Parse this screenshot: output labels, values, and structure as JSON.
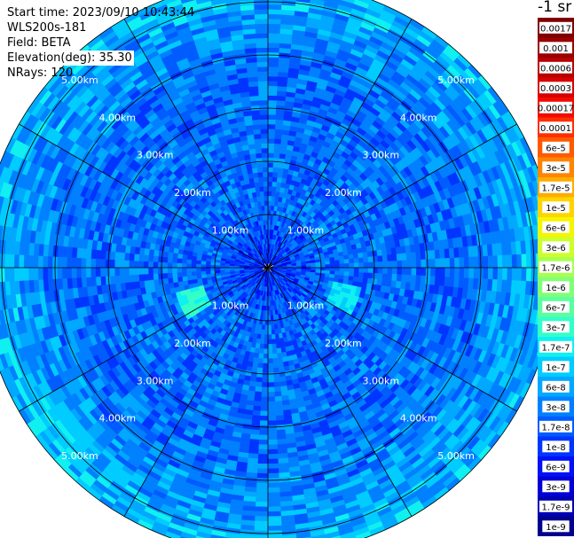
{
  "header": {
    "start_time": "Start time: 2023/09/10 10:43:44",
    "instrument": "WLS200s-181",
    "field": "Field: BETA",
    "elevation": "Elevation(deg): 35.30",
    "nrays": "NRays: 120"
  },
  "colorbar": {
    "title": "-1 sr",
    "labels": [
      "0.0017",
      "0.001",
      "0.0006",
      "0.0003",
      "0.00017",
      "0.0001",
      "6e-5",
      "3e-5",
      "1.7e-5",
      "1e-5",
      "6e-6",
      "3e-6",
      "1.7e-6",
      "1e-6",
      "6e-7",
      "3e-7",
      "1.7e-7",
      "1e-7",
      "6e-8",
      "3e-8",
      "1.7e-8",
      "1e-8",
      "6e-9",
      "3e-9",
      "1.7e-9",
      "1e-9"
    ],
    "colors": [
      "#7f0000",
      "#9a0000",
      "#b80000",
      "#d80000",
      "#f40a00",
      "#ff2e00",
      "#ff5a00",
      "#ff8400",
      "#ffac00",
      "#ffd400",
      "#f4f600",
      "#ccff2c",
      "#a8ff50",
      "#82ff76",
      "#5affa0",
      "#34ffc8",
      "#10f0f0",
      "#00ccff",
      "#00a8ff",
      "#0080ff",
      "#005cff",
      "#0034ff",
      "#0010f8",
      "#0000d6",
      "#0000b4",
      "#00008e"
    ]
  },
  "chart_data": {
    "type": "heatmap",
    "projection": "polar (plan position indicator)",
    "rays": 120,
    "range_rings_km": [
      1.0,
      2.0,
      3.0,
      4.0,
      5.0
    ],
    "range_ring_label": "km",
    "radial_spokes_deg": [
      0,
      30,
      60,
      90,
      120,
      150,
      180,
      210,
      240,
      270,
      300,
      330
    ],
    "max_range_km": 5.4,
    "color_scale": "log",
    "value_range": [
      1e-09,
      0.0017
    ],
    "typical_value": 3e-08,
    "near_range_value": 1e-08,
    "outer_range_value": 1e-07,
    "features": [
      {
        "azimuth_deg": 245,
        "range_km": 1.5,
        "value": 6e-07
      },
      {
        "azimuth_deg": 110,
        "range_km": 1.5,
        "value": 3e-07
      },
      {
        "azimuth_deg": 230,
        "range_km": 4.8,
        "value": 1.7e-07
      }
    ]
  }
}
